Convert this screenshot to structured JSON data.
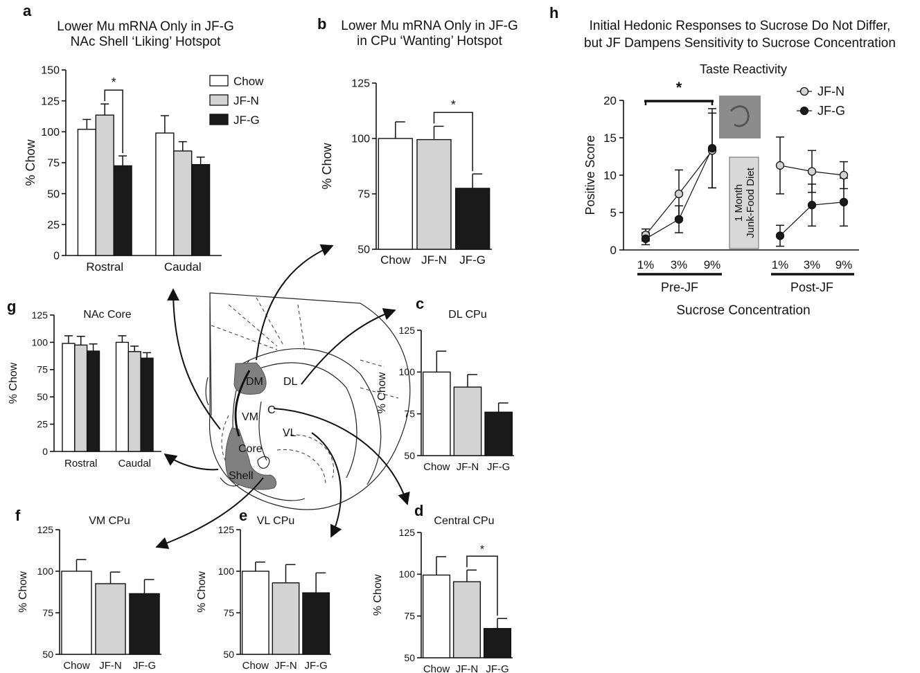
{
  "colors": {
    "Chow": "#ffffff",
    "JF-N": "#d3d3d3",
    "JF-G": "#1a1a1a",
    "hotspot": "#808080",
    "photo": "#8c8c8c",
    "diet_box": "#d8d8d8"
  },
  "legend": {
    "entries": [
      "Chow",
      "JF-N",
      "JF-G"
    ]
  },
  "brain": {
    "labels": [
      "DM",
      "DL",
      "VM",
      "C",
      "VL",
      "Core",
      "Shell"
    ]
  },
  "chart_data": [
    {
      "id": "a",
      "panel_label": "a",
      "type": "bar",
      "title": "Lower Mu mRNA Only in JF-G\nNAc Shell ‘Liking’ Hotspot",
      "ylabel": "% Chow",
      "ylim": [
        0,
        150
      ],
      "yticks": [
        0,
        25,
        50,
        75,
        100,
        125,
        150
      ],
      "categories": [
        "Rostral",
        "Caudal"
      ],
      "series": [
        {
          "name": "Chow",
          "values": [
            102,
            99
          ],
          "errors": [
            8,
            14
          ]
        },
        {
          "name": "JF-N",
          "values": [
            113.5,
            84.5
          ],
          "errors": [
            9,
            7.5
          ]
        },
        {
          "name": "JF-G",
          "values": [
            72.5,
            73.5
          ],
          "errors": [
            8,
            6
          ]
        }
      ],
      "annotations": [
        {
          "text": "*",
          "between": [
            "JF-N",
            "JF-G"
          ],
          "group": 0
        }
      ]
    },
    {
      "id": "b",
      "panel_label": "b",
      "type": "bar",
      "title": "Lower Mu mRNA Only in JF-G\nin CPu ‘Wanting’ Hotspot",
      "ylabel": "% Chow",
      "ylim": [
        50,
        125
      ],
      "yticks": [
        50,
        75,
        100,
        125
      ],
      "categories": [
        "Chow",
        "JF-N",
        "JF-G"
      ],
      "values": [
        100,
        99.5,
        77.5
      ],
      "errors": [
        7.5,
        6,
        6.5
      ],
      "annotations": [
        {
          "text": "*",
          "between": [
            "JF-N",
            "JF-G"
          ]
        }
      ]
    },
    {
      "id": "c",
      "panel_label": "c",
      "type": "bar",
      "title": "DL CPu",
      "ylabel": "% Chow",
      "ylim": [
        50,
        125
      ],
      "yticks": [
        50,
        75,
        100,
        125
      ],
      "categories": [
        "Chow",
        "JF-N",
        "JF-G"
      ],
      "values": [
        100,
        91,
        76
      ],
      "errors": [
        12.5,
        7.5,
        5.5
      ]
    },
    {
      "id": "d",
      "panel_label": "d",
      "type": "bar",
      "title": "Central CPu",
      "ylabel": "% Chow",
      "ylim": [
        50,
        125
      ],
      "yticks": [
        50,
        75,
        100,
        125
      ],
      "categories": [
        "Chow",
        "JF-N",
        "JF-G"
      ],
      "values": [
        99.5,
        95.5,
        67.5
      ],
      "errors": [
        11,
        7,
        6
      ],
      "annotations": [
        {
          "text": "*",
          "between": [
            "JF-N",
            "JF-G"
          ]
        }
      ]
    },
    {
      "id": "e",
      "panel_label": "e",
      "type": "bar",
      "title": "VL CPu",
      "ylabel": "% Chow",
      "ylim": [
        50,
        125
      ],
      "yticks": [
        50,
        75,
        100,
        125
      ],
      "categories": [
        "Chow",
        "JF-N",
        "JF-G"
      ],
      "values": [
        100,
        93,
        87
      ],
      "errors": [
        5.5,
        11,
        12
      ]
    },
    {
      "id": "f",
      "panel_label": "f",
      "type": "bar",
      "title": "VM CPu",
      "ylabel": "% Chow",
      "ylim": [
        50,
        125
      ],
      "yticks": [
        50,
        75,
        100,
        125
      ],
      "categories": [
        "Chow",
        "JF-N",
        "JF-G"
      ],
      "values": [
        100,
        92.5,
        86.5
      ],
      "errors": [
        7,
        7,
        8.5
      ]
    },
    {
      "id": "g",
      "panel_label": "g",
      "type": "bar",
      "title": "NAc Core",
      "ylabel": "% Chow",
      "ylim": [
        0,
        125
      ],
      "yticks": [
        0,
        25,
        50,
        75,
        100,
        125
      ],
      "categories": [
        "Rostral",
        "Caudal"
      ],
      "series": [
        {
          "name": "Chow",
          "values": [
            99,
            100
          ],
          "errors": [
            7,
            6
          ]
        },
        {
          "name": "JF-N",
          "values": [
            97.5,
            91.5
          ],
          "errors": [
            8,
            5
          ]
        },
        {
          "name": "JF-G",
          "values": [
            92,
            85.5
          ],
          "errors": [
            6.5,
            5
          ]
        }
      ]
    },
    {
      "id": "h",
      "panel_label": "h",
      "type": "line",
      "title": "Initial Hedonic Responses to Sucrose Do Not Differ,\nbut JF Dampens Sensitivity to Sucrose Concentration",
      "subtitle": "Taste Reactivity",
      "ylabel": "Positive Score",
      "xlabel": "Sucrose Concentration",
      "ylim": [
        0,
        20
      ],
      "yticks": [
        0,
        5,
        10,
        15,
        20
      ],
      "x": [
        "1%",
        "3%",
        "9%"
      ],
      "groups": [
        "Pre-JF",
        "Post-JF"
      ],
      "phase_label": "1 Month\nJunk-Food Diet",
      "series": [
        {
          "name": "JF-N",
          "pre": [
            2.0,
            7.5,
            13.3
          ],
          "pre_err": [
            0.8,
            3.2,
            5.0
          ],
          "post": [
            11.3,
            10.5,
            10.0
          ],
          "post_err": [
            3.8,
            2.8,
            1.8
          ]
        },
        {
          "name": "JF-G",
          "pre": [
            1.5,
            4.1,
            13.6
          ],
          "pre_err": [
            0.8,
            1.8,
            5.3
          ],
          "post": [
            1.9,
            6.0,
            6.4
          ],
          "post_err": [
            1.4,
            2.8,
            3.2
          ]
        }
      ],
      "legend": {
        "entries": [
          "JF-N",
          "JF-G"
        ],
        "placement": "top-right"
      },
      "annotations": [
        {
          "text": "*",
          "span": [
            "1%",
            "9%"
          ],
          "group": "Pre-JF"
        }
      ]
    }
  ]
}
